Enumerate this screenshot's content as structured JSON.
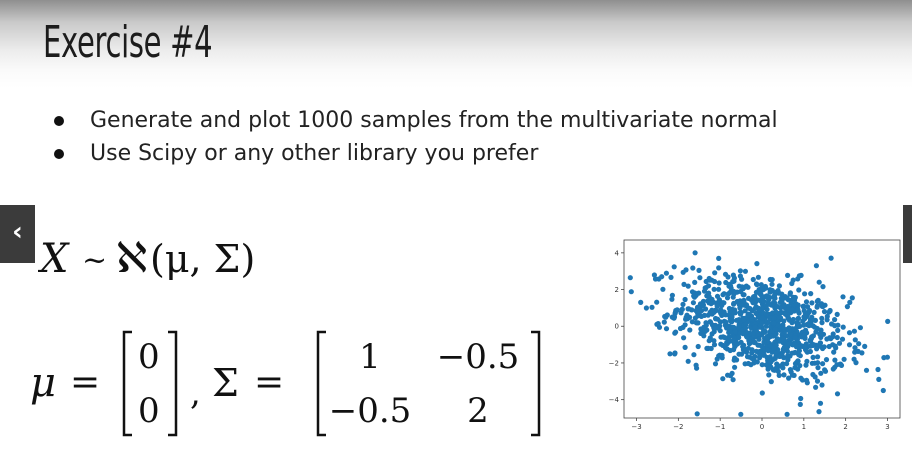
{
  "slide": {
    "title": "Exercise #4",
    "bullets": [
      "Generate and plot 1000 samples from the multivariate normal",
      "Use Scipy or any other library you prefer"
    ],
    "nav": {
      "prev_icon": "chevron-left-icon",
      "next_icon": "chevron-right-icon"
    }
  },
  "formula": {
    "distribution": {
      "lhs": "X",
      "tilde": "~",
      "aleph": "ℵ",
      "args": "(μ, Σ)"
    },
    "mu": {
      "symbol": "μ",
      "equals": "=",
      "vector": [
        "0",
        "0"
      ]
    },
    "sigma": {
      "comma": ",",
      "symbol": "Σ",
      "equals": "=",
      "matrix": [
        [
          "1",
          "−0.5"
        ],
        [
          "−0.5",
          "2"
        ]
      ]
    }
  },
  "chart_data": {
    "type": "scatter",
    "title": "",
    "xlabel": "",
    "ylabel": "",
    "xlim": [
      -3.3,
      3.3
    ],
    "ylim": [
      -5.0,
      4.7
    ],
    "xticks": [
      "−3",
      "−2",
      "−1",
      "0",
      "1",
      "2",
      "3"
    ],
    "yticks": [
      "4",
      "2",
      "0",
      "−2",
      "−4"
    ],
    "color": "#1f77b4",
    "n_samples": 1000,
    "mean": [
      0,
      0
    ],
    "cov": [
      [
        1,
        -0.5
      ],
      [
        -0.5,
        2
      ]
    ],
    "outliers": [
      {
        "x": -2.9,
        "y": 1.3
      },
      {
        "x": -1.6,
        "y": 4.0
      },
      {
        "x": 1.3,
        "y": 3.3
      },
      {
        "x": 2.9,
        "y": -3.5
      },
      {
        "x": 2.5,
        "y": -2.4
      },
      {
        "x": 0.6,
        "y": -4.8
      },
      {
        "x": 1.4,
        "y": -4.2
      },
      {
        "x": -2.2,
        "y": -1.5
      },
      {
        "x": -2.3,
        "y": 0.5
      },
      {
        "x": 2.1,
        "y": 1.3
      }
    ]
  }
}
